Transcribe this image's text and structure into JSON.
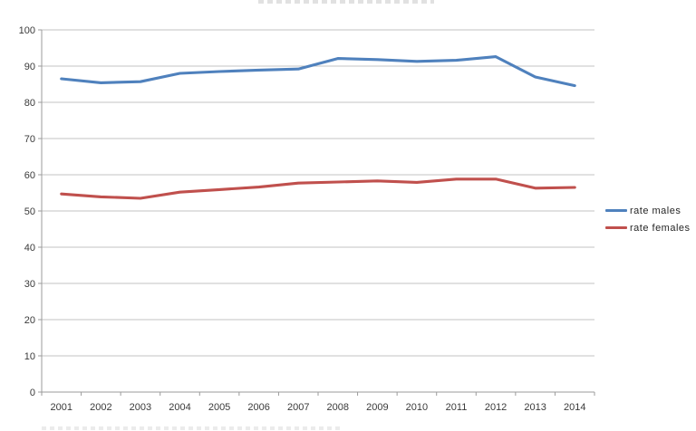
{
  "chart_data": {
    "type": "line",
    "title": "",
    "xlabel": "",
    "ylabel": "",
    "categories": [
      "2001",
      "2002",
      "2003",
      "2004",
      "2005",
      "2006",
      "2007",
      "2008",
      "2009",
      "2010",
      "2011",
      "2012",
      "2013",
      "2014"
    ],
    "series": [
      {
        "name": "rate males",
        "color": "#4F81BD",
        "values": [
          86.5,
          85.4,
          85.7,
          88.0,
          88.5,
          88.9,
          89.2,
          92.1,
          91.8,
          91.3,
          91.6,
          92.6,
          87.0,
          84.6
        ]
      },
      {
        "name": "rate females",
        "color": "#C0504D",
        "values": [
          54.7,
          53.9,
          53.5,
          55.2,
          55.9,
          56.6,
          57.7,
          58.0,
          58.3,
          57.9,
          58.8,
          58.8,
          56.3,
          56.5
        ]
      }
    ],
    "ylim": [
      0,
      100
    ],
    "ytick_step": 10,
    "grid": true,
    "legend_position": "right"
  },
  "colors": {
    "gridline": "#C3C3C3",
    "axis": "#9B9B9B",
    "tick_label": "#3A3A3A"
  }
}
